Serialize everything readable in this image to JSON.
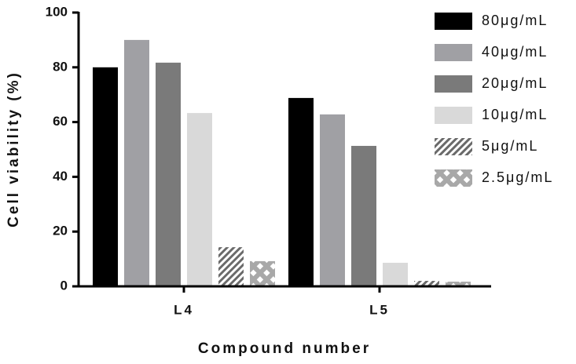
{
  "chart_data": {
    "type": "bar",
    "categories": [
      "L4",
      "L5"
    ],
    "series": [
      {
        "name": "80μg/mL",
        "color": "#000000",
        "values": [
          80,
          68.8
        ]
      },
      {
        "name": "40μg/mL",
        "color": "#a0a0a4",
        "values": [
          90,
          62.8
        ]
      },
      {
        "name": "20μg/mL",
        "color": "#7a7a7a",
        "values": [
          81.7,
          51.3
        ]
      },
      {
        "name": "10μg/mL",
        "color": "#d9d9d9",
        "values": [
          63.3,
          8.6
        ]
      },
      {
        "name": "5μg/mL",
        "color": "#6a6a6a",
        "pattern": "diagonal",
        "values": [
          14.3,
          2
        ]
      },
      {
        "name": "2.5μg/mL",
        "color": "#a8a8a8",
        "pattern": "cross",
        "values": [
          9.2,
          1.7
        ]
      }
    ],
    "ylabel": "Cell viability (%)",
    "xlabel": "Compound number",
    "ylim": [
      0,
      100
    ],
    "yticks": [
      0,
      20,
      40,
      60,
      80,
      100
    ],
    "legend": "right"
  }
}
